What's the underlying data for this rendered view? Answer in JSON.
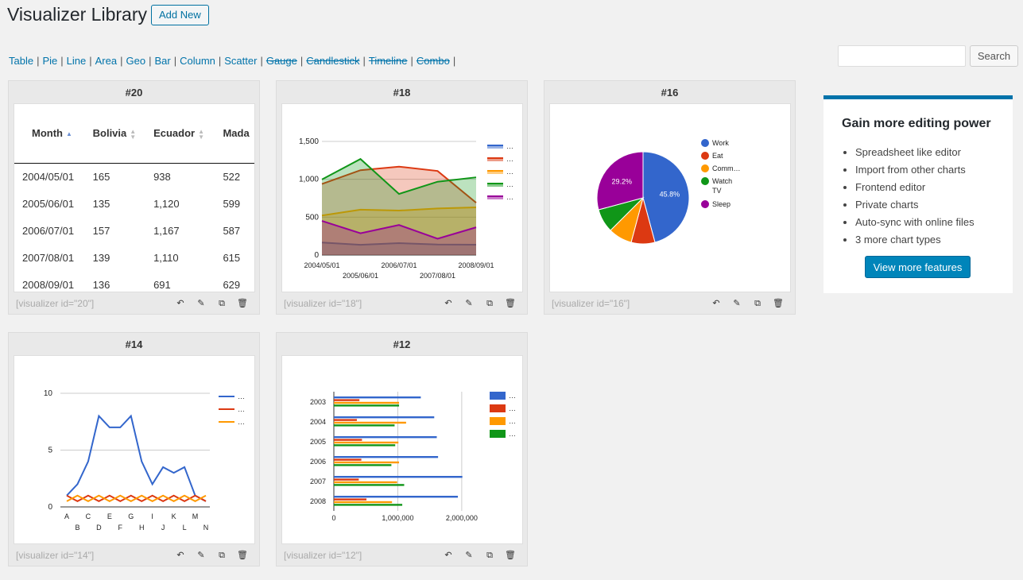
{
  "header": {
    "title": "Visualizer Library",
    "add_new_label": "Add New"
  },
  "filters": [
    {
      "label": "Table",
      "pro": false
    },
    {
      "label": "Pie",
      "pro": false
    },
    {
      "label": "Line",
      "pro": false
    },
    {
      "label": "Area",
      "pro": false
    },
    {
      "label": "Geo",
      "pro": false
    },
    {
      "label": "Bar",
      "pro": false
    },
    {
      "label": "Column",
      "pro": false
    },
    {
      "label": "Scatter",
      "pro": false
    },
    {
      "label": "Gauge",
      "pro": true
    },
    {
      "label": "Candlestick",
      "pro": true
    },
    {
      "label": "Timeline",
      "pro": true
    },
    {
      "label": "Combo",
      "pro": true
    }
  ],
  "search": {
    "placeholder": "",
    "button_label": "Search"
  },
  "cards": [
    {
      "id": "#20",
      "shortcode": "[visualizer id=\"20\"]"
    },
    {
      "id": "#18",
      "shortcode": "[visualizer id=\"18\"]"
    },
    {
      "id": "#16",
      "shortcode": "[visualizer id=\"16\"]"
    },
    {
      "id": "#14",
      "shortcode": "[visualizer id=\"14\"]"
    },
    {
      "id": "#12",
      "shortcode": "[visualizer id=\"12\"]"
    }
  ],
  "table": {
    "headers": [
      "Month",
      "Bolivia",
      "Ecuador",
      "Mada"
    ],
    "rows": [
      [
        "2004/05/01",
        "165",
        "938",
        "522"
      ],
      [
        "2005/06/01",
        "135",
        "1,120",
        "599"
      ],
      [
        "2006/07/01",
        "157",
        "1,167",
        "587"
      ],
      [
        "2007/08/01",
        "139",
        "1,110",
        "615"
      ],
      [
        "2008/09/01",
        "136",
        "691",
        "629"
      ]
    ]
  },
  "promo": {
    "title": "Gain more editing power",
    "features": [
      "Spreadsheet like editor",
      "Import from other charts",
      "Frontend editor",
      "Private charts",
      "Auto-sync with online files",
      "3 more chart types"
    ],
    "button_label": "View more features"
  },
  "icons": {
    "actions": [
      "undo-icon",
      "pencil-icon",
      "copy-icon",
      "trash-icon"
    ]
  },
  "chart_data": [
    {
      "type": "area",
      "card": "#18",
      "x": [
        "2004/05/01",
        "2005/06/01",
        "2006/07/01",
        "2007/08/01",
        "2008/09/01"
      ],
      "ylim": [
        0,
        1500
      ],
      "yticks": [
        "0",
        "500",
        "1,000",
        "1,500"
      ],
      "legend_placement": "right",
      "legend_labels": [
        "…",
        "…",
        "…",
        "…",
        "…"
      ],
      "series": [
        {
          "color": "#3366cc",
          "values": [
            165,
            135,
            157,
            139,
            136
          ]
        },
        {
          "color": "#dc3912",
          "values": [
            938,
            1120,
            1167,
            1110,
            691
          ]
        },
        {
          "color": "#ff9900",
          "values": [
            522,
            599,
            587,
            615,
            629
          ]
        },
        {
          "color": "#109618",
          "values": [
            998,
            1268,
            807,
            968,
            1026
          ]
        },
        {
          "color": "#990099",
          "values": [
            450,
            288,
            397,
            215,
            366
          ]
        }
      ]
    },
    {
      "type": "pie",
      "card": "#16",
      "legend_placement": "right",
      "slices": [
        {
          "label": "Work",
          "value": 11,
          "color": "#3366cc",
          "pct_label": "45.8%"
        },
        {
          "label": "Eat",
          "value": 2,
          "color": "#dc3912",
          "pct_label": ""
        },
        {
          "label": "Comm…",
          "value": 2,
          "color": "#ff9900",
          "pct_label": ""
        },
        {
          "label": "Watch TV",
          "value": 2,
          "color": "#109618",
          "pct_label": ""
        },
        {
          "label": "Sleep",
          "value": 7,
          "color": "#990099",
          "pct_label": "29.2%"
        }
      ]
    },
    {
      "type": "line",
      "card": "#14",
      "categories": [
        "A",
        "B",
        "C",
        "D",
        "E",
        "F",
        "G",
        "H",
        "I",
        "J",
        "K",
        "L",
        "M",
        "N"
      ],
      "ylim": [
        0,
        10
      ],
      "yticks": [
        "0",
        "5",
        "10"
      ],
      "legend_placement": "right",
      "legend_labels": [
        "…",
        "…",
        "…"
      ],
      "series": [
        {
          "color": "#3366cc",
          "values": [
            1,
            2,
            4,
            8,
            7,
            7,
            8,
            4,
            2,
            3.5,
            3,
            3.5,
            1,
            0.5
          ]
        },
        {
          "color": "#dc3912",
          "values": [
            1,
            0.5,
            1,
            0.5,
            1,
            0.5,
            1,
            0.5,
            1,
            0.5,
            1,
            0.5,
            1,
            0.5
          ]
        },
        {
          "color": "#ff9900",
          "values": [
            0.5,
            1,
            0.5,
            1,
            0.5,
            1,
            0.5,
            1,
            0.5,
            1,
            0.5,
            1,
            0.5,
            1
          ]
        }
      ]
    },
    {
      "type": "bar",
      "orientation": "horizontal",
      "card": "#12",
      "categories": [
        "2003",
        "2004",
        "2005",
        "2006",
        "2007",
        "2008"
      ],
      "xlim": [
        0,
        2300000
      ],
      "xticks": [
        {
          "v": 0,
          "label": "0"
        },
        {
          "v": 1000000,
          "label": "1,000,000"
        },
        {
          "v": 2000000,
          "label": "2,000,000"
        }
      ],
      "legend_placement": "right",
      "legend_labels": [
        "…",
        "…",
        "…",
        "…"
      ],
      "series": [
        {
          "color": "#3366cc",
          "values": [
            1360000,
            1570000,
            1610000,
            1630000,
            2010000,
            1940000
          ]
        },
        {
          "color": "#dc3912",
          "values": [
            400000,
            360000,
            440000,
            430000,
            390000,
            510000
          ]
        },
        {
          "color": "#ff9900",
          "values": [
            1020000,
            1130000,
            1010000,
            1020000,
            990000,
            910000
          ]
        },
        {
          "color": "#109618",
          "values": [
            1020000,
            950000,
            960000,
            900000,
            1100000,
            1070000
          ]
        }
      ]
    }
  ]
}
